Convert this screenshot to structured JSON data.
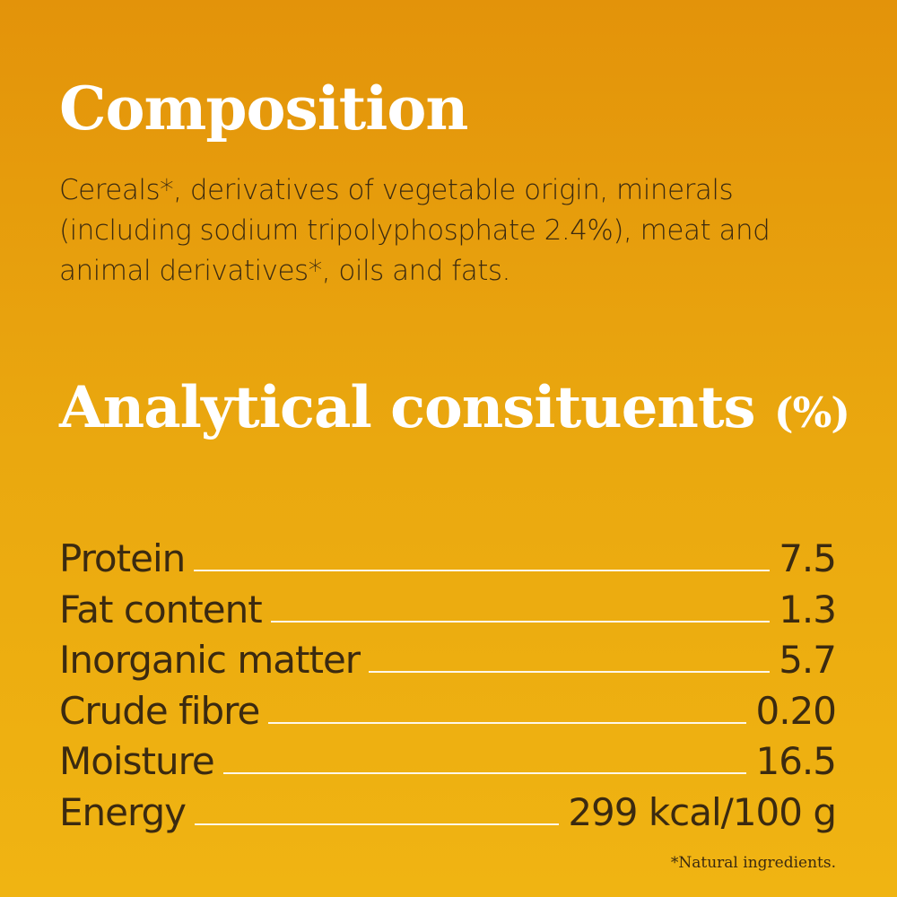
{
  "composition": {
    "title": "Composition",
    "text": "Cereals*, derivatives of vegetable origin, minerals (including sodium tripolyphosphate 2.4%), meat and animal derivatives*, oils and fats."
  },
  "analytical": {
    "title": "Analytical consituents",
    "unit": "(%)",
    "rows": [
      {
        "label": "Protein",
        "value": "7.5"
      },
      {
        "label": "Fat content",
        "value": "1.3"
      },
      {
        "label": "Inorganic matter",
        "value": "5.7"
      },
      {
        "label": "Crude fibre",
        "value": "0.20"
      },
      {
        "label": "Moisture",
        "value": "16.5"
      },
      {
        "label": "Energy",
        "value": "299 kcal/100 g"
      }
    ]
  },
  "footnote": "*Natural ingredients.",
  "colors": {
    "background_top": "#e3930a",
    "background_bottom": "#f0b412",
    "heading": "#ffffff",
    "text": "#3b2a10"
  }
}
